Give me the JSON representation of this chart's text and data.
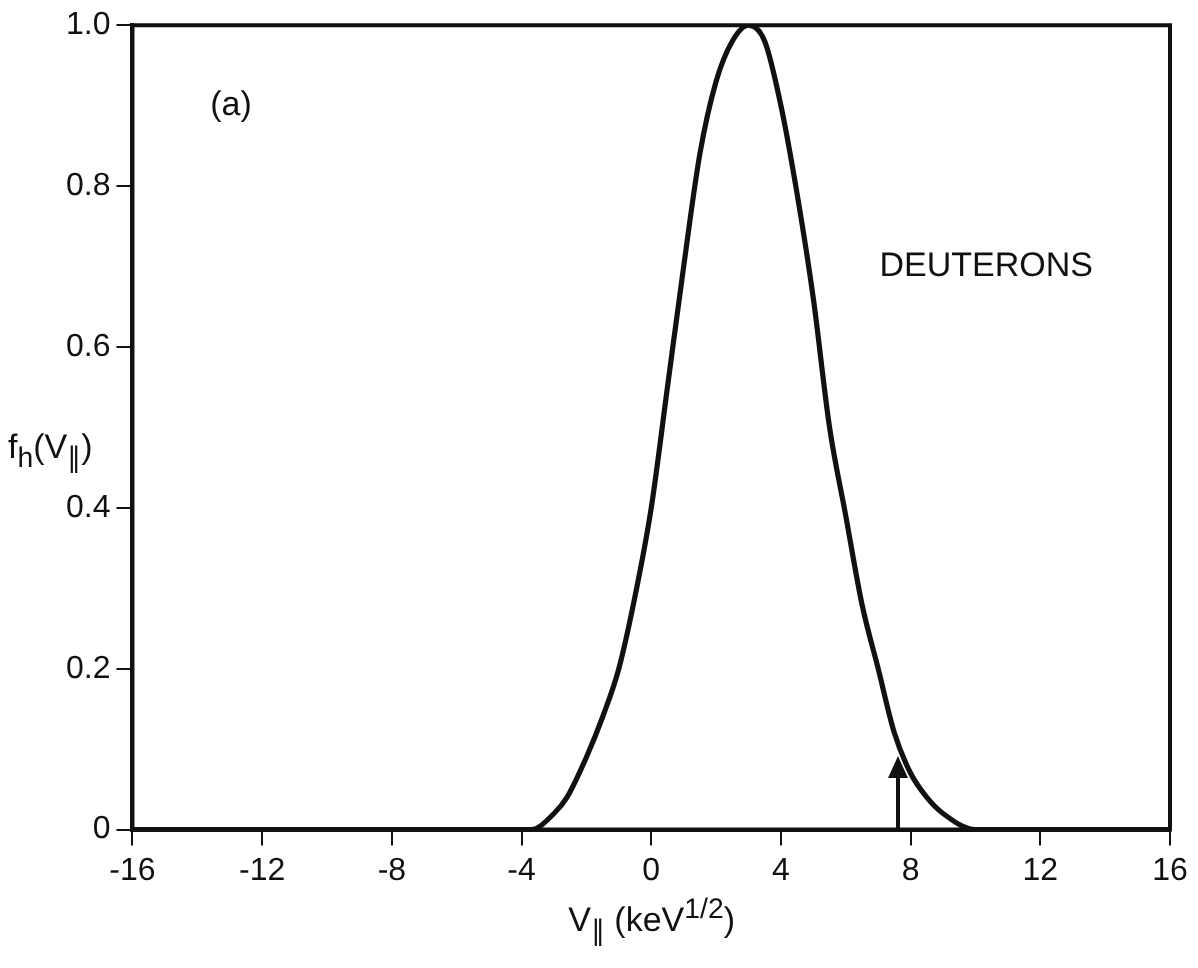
{
  "chart_data": {
    "type": "line",
    "xlabel": "V$_{∥}$ (keV$^{1/2}$)",
    "ylabel": "f$_{h}$(V$_{∥}$)",
    "annotations": [
      "(a)",
      "DEUTERONS"
    ],
    "x": [
      -16,
      -3.7,
      -3,
      -2.6,
      -2,
      -1.5,
      -1,
      -0.5,
      0,
      0.5,
      1,
      1.5,
      2,
      2.5,
      3,
      3.5,
      4,
      4.5,
      5,
      5.5,
      6,
      6.5,
      7,
      7.5,
      8,
      8.5,
      9,
      10,
      16
    ],
    "series": [
      {
        "color": "#111111",
        "values": [
          0,
          0,
          0.02,
          0.04,
          0.09,
          0.14,
          0.2,
          0.29,
          0.4,
          0.55,
          0.7,
          0.84,
          0.93,
          0.98,
          1.0,
          0.98,
          0.9,
          0.79,
          0.66,
          0.5,
          0.39,
          0.28,
          0.2,
          0.12,
          0.07,
          0.04,
          0.02,
          0,
          0
        ]
      }
    ],
    "xlim": [
      -16,
      16
    ],
    "ylim": [
      0,
      1
    ],
    "xticks": [
      -16,
      -12,
      -8,
      -4,
      0,
      4,
      8,
      12,
      16
    ],
    "yticks": [
      0,
      0.2,
      0.4,
      0.6,
      0.8,
      {
        "value": 1,
        "label": "1.0"
      }
    ],
    "grid": false,
    "legend": false,
    "marker": "none",
    "line_style": "solid"
  }
}
